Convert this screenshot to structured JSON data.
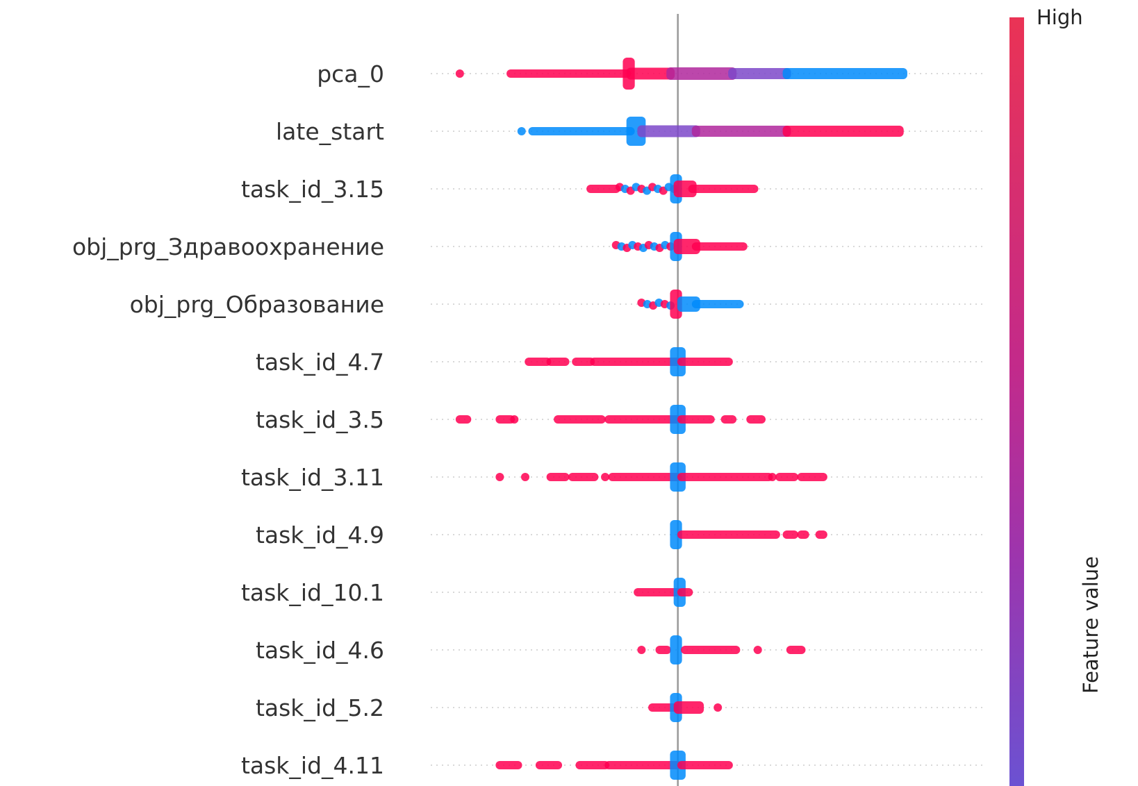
{
  "chart_data": {
    "type": "scatter",
    "subtype": "shap-beeswarm-summary",
    "features": [
      {
        "name": "pca_0",
        "clusters": [
          {
            "from": -0.6,
            "to": -0.6,
            "color": "high"
          },
          {
            "from": -0.46,
            "to": -0.14,
            "color": "high"
          },
          {
            "from": -0.14,
            "to": -0.13,
            "color": "high",
            "spread": 34
          },
          {
            "from": -0.13,
            "to": -0.02,
            "color": "high",
            "spread": 5
          },
          {
            "from": -0.02,
            "to": 0.15,
            "color": "mid",
            "spread": 6
          },
          {
            "from": 0.15,
            "to": 0.3,
            "color": "midlow",
            "spread": 4
          },
          {
            "from": 0.3,
            "to": 0.62,
            "color": "low",
            "spread": 4
          }
        ]
      },
      {
        "name": "late_start",
        "clusters": [
          {
            "from": -0.43,
            "to": -0.43,
            "color": "low"
          },
          {
            "from": -0.4,
            "to": -0.13,
            "color": "low"
          },
          {
            "from": -0.13,
            "to": -0.1,
            "color": "low",
            "spread": 30
          },
          {
            "from": -0.1,
            "to": 0.05,
            "color": "midlow",
            "spread": 5
          },
          {
            "from": 0.05,
            "to": 0.3,
            "color": "mid",
            "spread": 4
          },
          {
            "from": 0.3,
            "to": 0.61,
            "color": "high",
            "spread": 4
          }
        ]
      },
      {
        "name": "task_id_3.15",
        "clusters": [
          {
            "from": -0.24,
            "to": -0.17,
            "color": "high"
          },
          {
            "from": -0.16,
            "to": -0.01,
            "color": "mix",
            "spread": 8
          },
          {
            "from": -0.01,
            "to": 0.0,
            "color": "low",
            "spread": 30
          },
          {
            "from": 0.0,
            "to": 0.04,
            "color": "high",
            "spread": 12
          },
          {
            "from": 0.04,
            "to": 0.21,
            "color": "high"
          }
        ]
      },
      {
        "name": "obj_prg_Здравоохранение",
        "clusters": [
          {
            "from": -0.17,
            "to": -0.02,
            "color": "mix",
            "spread": 6
          },
          {
            "from": -0.01,
            "to": 0.0,
            "color": "low",
            "spread": 30
          },
          {
            "from": 0.0,
            "to": 0.05,
            "color": "high",
            "spread": 10
          },
          {
            "from": 0.05,
            "to": 0.18,
            "color": "high"
          }
        ]
      },
      {
        "name": "obj_prg_Образование",
        "clusters": [
          {
            "from": -0.1,
            "to": -0.02,
            "color": "mix",
            "spread": 6
          },
          {
            "from": -0.01,
            "to": 0.0,
            "color": "high",
            "spread": 30
          },
          {
            "from": 0.01,
            "to": 0.05,
            "color": "low",
            "spread": 10
          },
          {
            "from": 0.05,
            "to": 0.17,
            "color": "low"
          }
        ]
      },
      {
        "name": "task_id_4.7",
        "clusters": [
          {
            "from": -0.41,
            "to": -0.36,
            "color": "high"
          },
          {
            "from": -0.35,
            "to": -0.31,
            "color": "high"
          },
          {
            "from": -0.28,
            "to": -0.24,
            "color": "high"
          },
          {
            "from": -0.23,
            "to": 0.0,
            "color": "high"
          },
          {
            "from": -0.01,
            "to": 0.01,
            "color": "low",
            "spread": 30
          },
          {
            "from": 0.01,
            "to": 0.14,
            "color": "high"
          }
        ]
      },
      {
        "name": "task_id_3.5",
        "clusters": [
          {
            "from": -0.6,
            "to": -0.58,
            "color": "high"
          },
          {
            "from": -0.49,
            "to": -0.46,
            "color": "high"
          },
          {
            "from": -0.45,
            "to": -0.45,
            "color": "high"
          },
          {
            "from": -0.33,
            "to": -0.21,
            "color": "high"
          },
          {
            "from": -0.19,
            "to": 0.0,
            "color": "high"
          },
          {
            "from": -0.01,
            "to": 0.01,
            "color": "low",
            "spread": 30
          },
          {
            "from": 0.01,
            "to": 0.09,
            "color": "high"
          },
          {
            "from": 0.13,
            "to": 0.15,
            "color": "high"
          },
          {
            "from": 0.2,
            "to": 0.23,
            "color": "high"
          }
        ]
      },
      {
        "name": "task_id_3.11",
        "clusters": [
          {
            "from": -0.49,
            "to": -0.49,
            "color": "high"
          },
          {
            "from": -0.42,
            "to": -0.42,
            "color": "high"
          },
          {
            "from": -0.35,
            "to": -0.31,
            "color": "high"
          },
          {
            "from": -0.29,
            "to": -0.23,
            "color": "high"
          },
          {
            "from": -0.2,
            "to": -0.2,
            "color": "high"
          },
          {
            "from": -0.18,
            "to": 0.0,
            "color": "high"
          },
          {
            "from": -0.01,
            "to": 0.01,
            "color": "low",
            "spread": 30
          },
          {
            "from": 0.01,
            "to": 0.25,
            "color": "high"
          },
          {
            "from": 0.26,
            "to": 0.26,
            "color": "high"
          },
          {
            "from": 0.28,
            "to": 0.32,
            "color": "high"
          },
          {
            "from": 0.34,
            "to": 0.4,
            "color": "high"
          }
        ]
      },
      {
        "name": "task_id_4.9",
        "clusters": [
          {
            "from": -0.01,
            "to": 0.0,
            "color": "low",
            "spread": 30
          },
          {
            "from": 0.01,
            "to": 0.27,
            "color": "high"
          },
          {
            "from": 0.3,
            "to": 0.32,
            "color": "high"
          },
          {
            "from": 0.34,
            "to": 0.35,
            "color": "high"
          },
          {
            "from": 0.39,
            "to": 0.4,
            "color": "high"
          }
        ]
      },
      {
        "name": "task_id_10.1",
        "clusters": [
          {
            "from": -0.11,
            "to": 0.0,
            "color": "high"
          },
          {
            "from": 0.0,
            "to": 0.01,
            "color": "low",
            "spread": 30
          },
          {
            "from": 0.01,
            "to": 0.03,
            "color": "high"
          }
        ]
      },
      {
        "name": "task_id_4.6",
        "clusters": [
          {
            "from": -0.1,
            "to": -0.1,
            "color": "high"
          },
          {
            "from": -0.05,
            "to": -0.03,
            "color": "high"
          },
          {
            "from": -0.01,
            "to": 0.0,
            "color": "low",
            "spread": 30
          },
          {
            "from": 0.02,
            "to": 0.16,
            "color": "high"
          },
          {
            "from": 0.22,
            "to": 0.22,
            "color": "high"
          },
          {
            "from": 0.31,
            "to": 0.34,
            "color": "high"
          }
        ]
      },
      {
        "name": "task_id_5.2",
        "clusters": [
          {
            "from": -0.07,
            "to": -0.01,
            "color": "high"
          },
          {
            "from": -0.01,
            "to": 0.0,
            "color": "low",
            "spread": 30
          },
          {
            "from": 0.0,
            "to": 0.06,
            "color": "high",
            "spread": 6
          },
          {
            "from": 0.11,
            "to": 0.11,
            "color": "high"
          }
        ]
      },
      {
        "name": "task_id_4.11",
        "clusters": [
          {
            "from": -0.49,
            "to": -0.44,
            "color": "high"
          },
          {
            "from": -0.38,
            "to": -0.33,
            "color": "high"
          },
          {
            "from": -0.27,
            "to": -0.2,
            "color": "high"
          },
          {
            "from": -0.19,
            "to": 0.0,
            "color": "high"
          },
          {
            "from": -0.01,
            "to": 0.01,
            "color": "low",
            "spread": 30
          },
          {
            "from": 0.01,
            "to": 0.14,
            "color": "high"
          }
        ]
      }
    ],
    "zero_line": 0,
    "xlim": [
      -0.68,
      0.84
    ],
    "xlabel": "",
    "colorbar": {
      "label": "Feature value",
      "high_label": "High",
      "low_label": ""
    },
    "colors": {
      "high": "#ff0051",
      "mid": "#b0279c",
      "midlow": "#7c48c9",
      "low": "#008bfb",
      "mix": "#8a4ab0"
    }
  }
}
